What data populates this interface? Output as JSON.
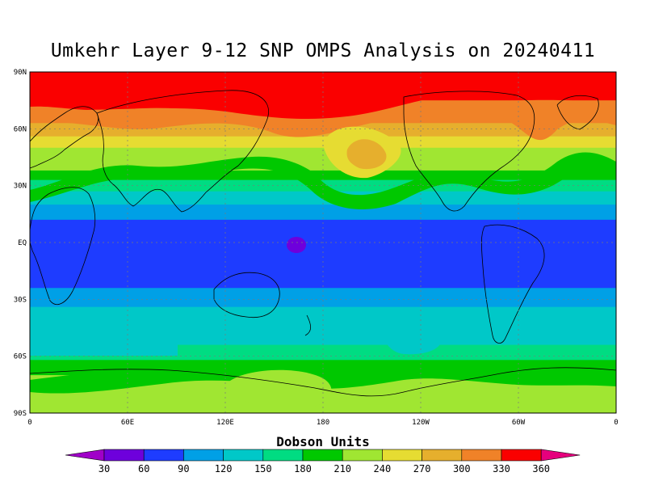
{
  "title": "Umkehr Layer 9-12 SNP OMPS Analysis on 20240411",
  "lat_labels": [
    "90N",
    "60N",
    "30N",
    "EQ",
    "30S",
    "60S",
    "90S"
  ],
  "lon_labels": [
    "0",
    "60E",
    "120E",
    "180",
    "120W",
    "60W",
    "0"
  ],
  "colorbar": {
    "title": "Dobson Units",
    "levels": [
      "30",
      "60",
      "90",
      "120",
      "150",
      "180",
      "210",
      "240",
      "270",
      "300",
      "330",
      "360"
    ],
    "colors": [
      "#a000c8",
      "#6e00dc",
      "#1e3cff",
      "#00a0e6",
      "#00c8c8",
      "#00dc82",
      "#00c800",
      "#a0e632",
      "#e6dc32",
      "#e6af2d",
      "#f08228",
      "#fa0000",
      "#e6007d"
    ]
  },
  "map": {
    "lat_range": [
      -90,
      90
    ],
    "lon_range": [
      0,
      360
    ],
    "grid": true,
    "bands": [
      {
        "color": "#e6007d",
        "lat_top": 90,
        "lat_bottom": 84
      },
      {
        "color": "#fa0000",
        "lat_top": 84,
        "lat_bottom": 75
      },
      {
        "color": "#f08228",
        "lat_top": 75,
        "lat_bottom": 63
      },
      {
        "color": "#e6af2d",
        "lat_top": 63,
        "lat_bottom": 56
      },
      {
        "color": "#e6dc32",
        "lat_top": 56,
        "lat_bottom": 50
      },
      {
        "color": "#a0e632",
        "lat_top": 50,
        "lat_bottom": 38
      },
      {
        "color": "#00c800",
        "lat_top": 38,
        "lat_bottom": 33
      },
      {
        "color": "#00dc82",
        "lat_top": 33,
        "lat_bottom": 27
      },
      {
        "color": "#00c8c8",
        "lat_top": 27,
        "lat_bottom": 20
      },
      {
        "color": "#00a0e6",
        "lat_top": 20,
        "lat_bottom": 12
      },
      {
        "color": "#1e3cff",
        "lat_top": 12,
        "lat_bottom": -24
      },
      {
        "color": "#00a0e6",
        "lat_top": -24,
        "lat_bottom": -34
      },
      {
        "color": "#00c8c8",
        "lat_top": -34,
        "lat_bottom": -54
      },
      {
        "color": "#00dc82",
        "lat_top": -54,
        "lat_bottom": -62
      },
      {
        "color": "#00c800",
        "lat_top": -62,
        "lat_bottom": -70
      },
      {
        "color": "#a0e632",
        "lat_top": -70,
        "lat_bottom": -90
      }
    ]
  }
}
